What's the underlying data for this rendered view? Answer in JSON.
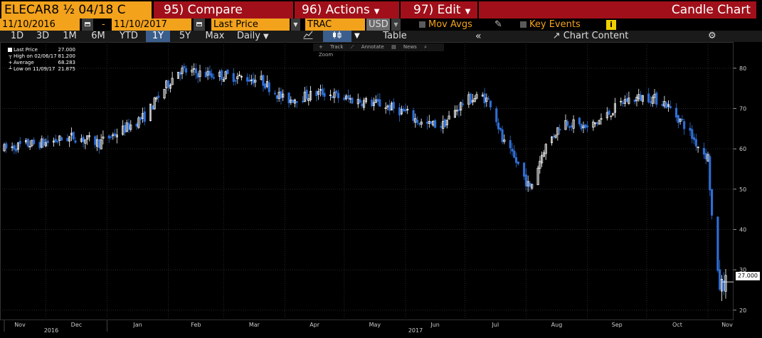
{
  "header": {
    "ticker": "ELECAR8 ½ 04/18 C",
    "compare": "95) Compare",
    "actions": "96) Actions",
    "edit": "97) Edit",
    "title": "Candle Chart"
  },
  "controls": {
    "start_date": "11/10/2016",
    "end_date": "11/10/2017",
    "dash": "-",
    "field": "Last Price",
    "source": "TRAC",
    "currency": "USD",
    "mov_avgs": "Mov Avgs",
    "key_events": "Key Events",
    "info_icon": "i"
  },
  "toolbar": {
    "ranges": [
      "1D",
      "3D",
      "1M",
      "6M",
      "YTD",
      "1Y",
      "5Y",
      "Max"
    ],
    "active_range": "1Y",
    "frequency": "Daily",
    "table": "Table",
    "chart_content": "Chart Content",
    "icons": [
      "line-chart-icon",
      "candle-chart-icon",
      "collapse-icon",
      "chart-content-icon",
      "gear-icon",
      "pencil-icon",
      "calendar-icon"
    ]
  },
  "legend": {
    "last_price_label": "Last Price",
    "last_price_value": "27.000",
    "high_label": "High on 02/06/17",
    "high_value": "81.200",
    "average_label": "Average",
    "average_value": "68.283",
    "low_label": "Low on 11/09/17",
    "low_value": "21.875"
  },
  "chart_tools": {
    "track": "Track",
    "annotate": "Annotate",
    "news": "News",
    "zoom": "Zoom"
  },
  "colors": {
    "up": "#ffffff",
    "down": "#2f6fd6",
    "accent": "#f3a21c",
    "header_red": "#a1101a",
    "background": "#000000",
    "grid": "#2a2a2a"
  },
  "chart_data": {
    "type": "candlestick",
    "title": "Candle Chart",
    "x_axis": {
      "month_labels": [
        "Nov",
        "Dec",
        "Jan",
        "Feb",
        "Mar",
        "Apr",
        "May",
        "Jun",
        "Jul",
        "Aug",
        "Sep",
        "Oct",
        "Nov"
      ],
      "year_labels": [
        "2016",
        "2017"
      ]
    },
    "y_axis": {
      "ticks": [
        20,
        30,
        40,
        50,
        60,
        70,
        80
      ],
      "ylim": [
        17.5,
        86.5
      ],
      "side": "right"
    },
    "last_value_label": "27.000",
    "grid": true,
    "date_range": [
      "11/10/2016",
      "11/10/2017"
    ],
    "trend_anchors_approx": [
      [
        "2016-11-10",
        60
      ],
      [
        "2016-11-20",
        61
      ],
      [
        "2016-12-01",
        61.5
      ],
      [
        "2016-12-15",
        63
      ],
      [
        "2016-12-28",
        61.5
      ],
      [
        "2017-01-10",
        65
      ],
      [
        "2017-01-20",
        68
      ],
      [
        "2017-01-30",
        75
      ],
      [
        "2017-02-06",
        79.5
      ],
      [
        "2017-02-20",
        78.5
      ],
      [
        "2017-03-05",
        78
      ],
      [
        "2017-03-20",
        77
      ],
      [
        "2017-04-01",
        72
      ],
      [
        "2017-04-20",
        74
      ],
      [
        "2017-05-01",
        72.5
      ],
      [
        "2017-05-20",
        71
      ],
      [
        "2017-06-01",
        69
      ],
      [
        "2017-06-10",
        66
      ],
      [
        "2017-06-20",
        66
      ],
      [
        "2017-07-01",
        72
      ],
      [
        "2017-07-10",
        73
      ],
      [
        "2017-07-15",
        71
      ],
      [
        "2017-07-20",
        62
      ],
      [
        "2017-07-28",
        56
      ],
      [
        "2017-08-03",
        50
      ],
      [
        "2017-08-10",
        60
      ],
      [
        "2017-08-20",
        67
      ],
      [
        "2017-09-01",
        65
      ],
      [
        "2017-09-10",
        68
      ],
      [
        "2017-09-20",
        72
      ],
      [
        "2017-10-01",
        73
      ],
      [
        "2017-10-10",
        71.5
      ],
      [
        "2017-10-20",
        66
      ],
      [
        "2017-10-28",
        60
      ],
      [
        "2017-11-01",
        58
      ],
      [
        "2017-11-03",
        43
      ],
      [
        "2017-11-05",
        30
      ],
      [
        "2017-11-07",
        26
      ],
      [
        "2017-11-10",
        27
      ]
    ],
    "range_summary": {
      "high": 81.2,
      "high_date": "02/06/17",
      "low": 21.875,
      "low_date": "11/09/17",
      "average": 68.283,
      "last": 27.0
    }
  }
}
